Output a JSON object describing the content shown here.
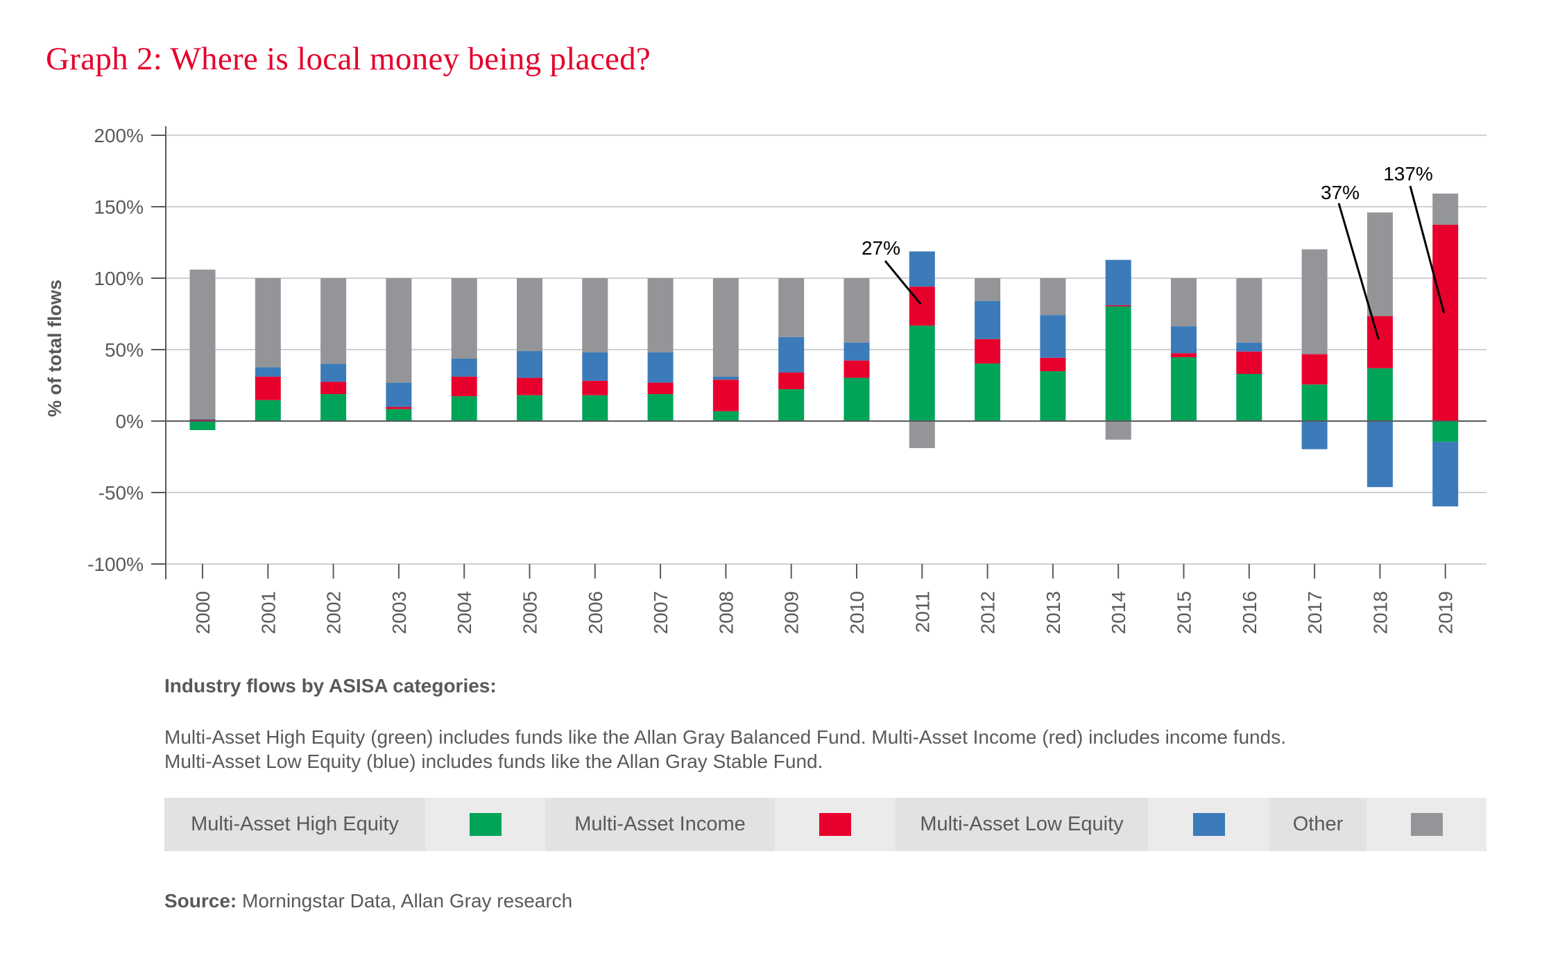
{
  "page": {
    "title": "Graph 2: Where is local money being placed?",
    "subheading": "Industry flows by ASISA categories:",
    "description_lines": [
      "Multi-Asset High Equity (green) includes funds like the Allan Gray Balanced Fund. Multi-Asset Income (red) includes income funds.",
      "Multi-Asset Low Equity (blue) includes funds like the Allan Gray Stable Fund."
    ],
    "source_label": "Source:",
    "source_text": " Morningstar Data, Allan Gray research"
  },
  "legend": [
    {
      "label": "Multi-Asset High Equity",
      "color": "#00a459"
    },
    {
      "label": "Multi-Asset Income",
      "color": "#e8002c"
    },
    {
      "label": "Multi-Asset Low Equity",
      "color": "#3c7bb9"
    },
    {
      "label": "Other",
      "color": "#949598"
    }
  ],
  "chart_data": {
    "type": "bar",
    "stacked": true,
    "title": "Graph 2: Where is local money being placed?",
    "xlabel": "",
    "ylabel": "% of total flows",
    "ylim": [
      -100,
      200
    ],
    "yticks": [
      -100,
      -50,
      0,
      50,
      100,
      150,
      200
    ],
    "ytick_labels": [
      "-100%",
      "-50%",
      "0%",
      "50%",
      "100%",
      "150%",
      "200%"
    ],
    "grid": true,
    "legend_position": "bottom",
    "categories": [
      "2000",
      "2001",
      "2002",
      "2003",
      "2004",
      "2005",
      "2006",
      "2007",
      "2008",
      "2009",
      "2010",
      "2011",
      "2012",
      "2013",
      "2014",
      "2015",
      "2016",
      "2017",
      "2018",
      "2019"
    ],
    "series": [
      {
        "name": "Multi-Asset High Equity",
        "color": "#00a459",
        "values": [
          -6.3,
          14.7,
          18.9,
          8.4,
          17.4,
          18.1,
          18.1,
          18.9,
          6.9,
          22.3,
          30.3,
          66.8,
          40.3,
          34.9,
          80.3,
          44.7,
          33.0,
          25.6,
          37.0,
          -14.5
        ]
      },
      {
        "name": "Multi-Asset Income",
        "color": "#e8002c",
        "values": [
          1.0,
          16.4,
          8.6,
          1.5,
          13.7,
          12.2,
          10.1,
          8.0,
          22.1,
          11.7,
          12.1,
          27.3,
          17.1,
          9.4,
          0.8,
          2.8,
          15.7,
          21.2,
          36.5,
          137.4
        ]
      },
      {
        "name": "Multi-Asset Low Equity",
        "color": "#3c7bb9",
        "values": [
          0.5,
          6.5,
          12.6,
          17.0,
          12.6,
          18.7,
          19.9,
          21.2,
          2.1,
          24.8,
          12.6,
          24.6,
          26.6,
          29.9,
          31.7,
          18.9,
          6.3,
          -19.7,
          -46.2,
          -45.2
        ]
      },
      {
        "name": "Other",
        "color": "#949598",
        "values": [
          104.5,
          62.4,
          59.9,
          73.1,
          56.3,
          51.0,
          51.9,
          51.9,
          68.9,
          41.2,
          45.0,
          -18.9,
          16.0,
          25.8,
          -13.0,
          33.6,
          45.0,
          73.4,
          72.5,
          21.8
        ]
      }
    ],
    "annotations": [
      {
        "category": "2011",
        "series": "Multi-Asset Income",
        "text": "27%"
      },
      {
        "category": "2018",
        "series": "Multi-Asset Income",
        "text": "37%"
      },
      {
        "category": "2019",
        "series": "Multi-Asset Income",
        "text": "137%"
      }
    ]
  }
}
